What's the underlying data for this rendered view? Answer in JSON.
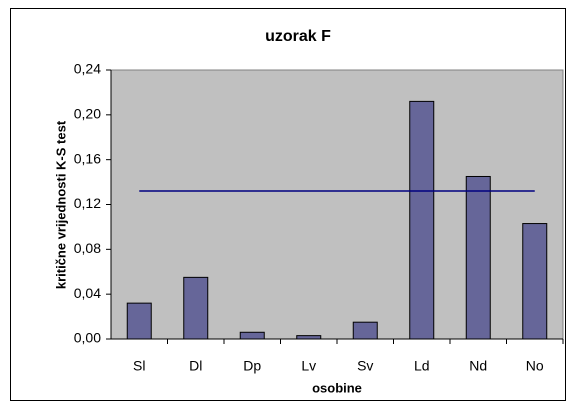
{
  "chart_data": {
    "type": "bar",
    "title": "uzorak F",
    "x_label": "osobine",
    "y_label": "kritične vrijednosti K-S test",
    "categories": [
      "Sl",
      "Dl",
      "Dp",
      "Lv",
      "Sv",
      "Ld",
      "Nd",
      "No"
    ],
    "values": [
      0.032,
      0.055,
      0.006,
      0.003,
      0.015,
      0.212,
      0.145,
      0.103
    ],
    "color": "#666699",
    "reference_line": 0.132,
    "reference_color": "#000080",
    "ylim": [
      0,
      0.24
    ],
    "yticks": [
      {
        "value": 0,
        "label": "0,00"
      },
      {
        "value": 0.04,
        "label": "0,04"
      },
      {
        "value": 0.08,
        "label": "0,08"
      },
      {
        "value": 0.12,
        "label": "0,12"
      },
      {
        "value": 0.16,
        "label": "0,16"
      },
      {
        "value": 0.2,
        "label": "0,20"
      },
      {
        "value": 0.24,
        "label": "0,24"
      }
    ],
    "grid": false
  }
}
